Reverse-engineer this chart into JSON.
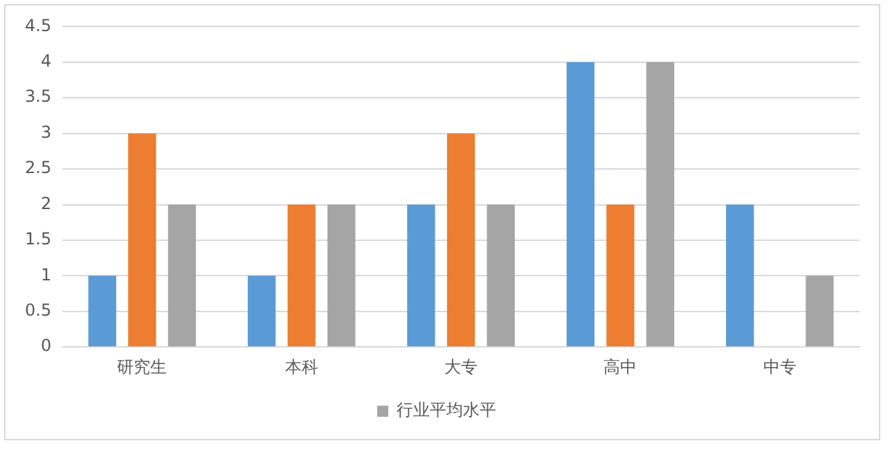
{
  "chart_data": {
    "type": "bar",
    "categories": [
      "研究生",
      "本科",
      "大专",
      "高中",
      "中专"
    ],
    "series": [
      {
        "color": "#5b9bd5",
        "values": [
          1,
          1,
          2,
          4,
          2
        ]
      },
      {
        "color": "#ed7d31",
        "values": [
          3,
          2,
          3,
          2,
          0
        ]
      },
      {
        "name": "行业平均水平",
        "color": "#a5a5a5",
        "values": [
          2,
          2,
          2,
          4,
          1
        ]
      }
    ],
    "ylim": [
      0,
      4.5
    ],
    "yticks": [
      0,
      0.5,
      1,
      1.5,
      2,
      2.5,
      3,
      3.5,
      4,
      4.5
    ],
    "grid": "y",
    "legend": "bottom"
  }
}
